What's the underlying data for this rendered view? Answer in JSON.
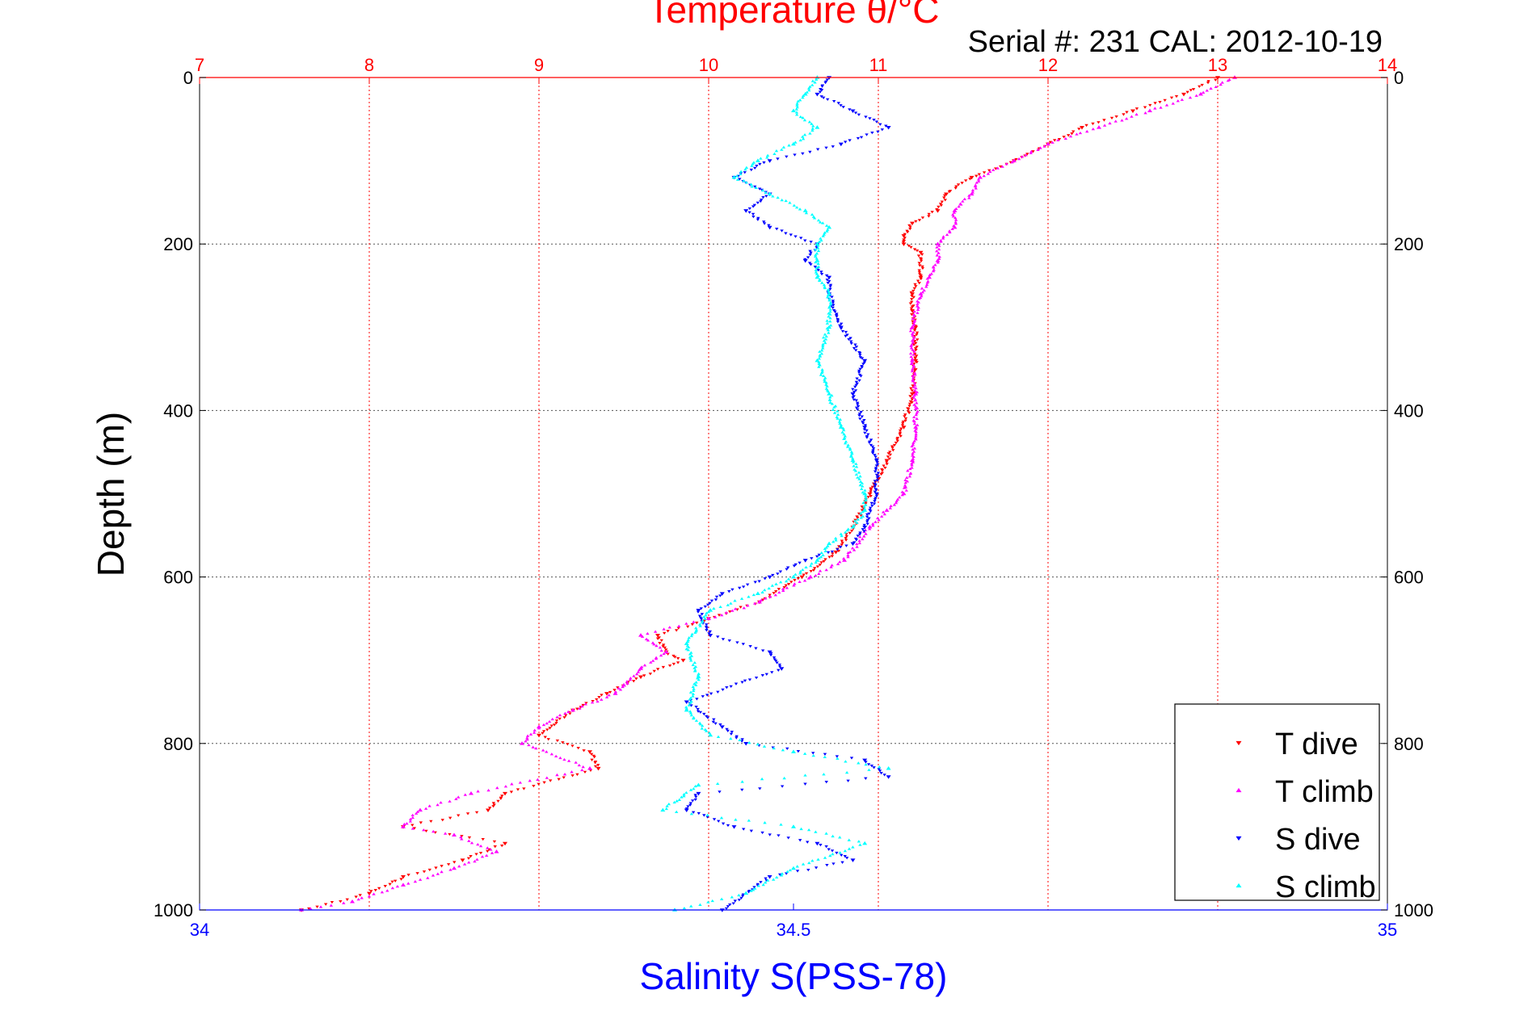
{
  "chart_data": {
    "type": "scatter",
    "title_top": "Temperature θ/°C",
    "subtitle": "Serial #: 231  CAL: 2012-10-19",
    "ylabel": "Depth (m)",
    "xlabel_bottom": "Salinity S(PSS-78)",
    "y_axis": {
      "range": [
        0,
        1000
      ],
      "reversed": true,
      "ticks": [
        0,
        200,
        400,
        600,
        800,
        1000
      ],
      "grid": true
    },
    "x_axis_top": {
      "quantity": "Temperature",
      "range": [
        7,
        14
      ],
      "ticks": [
        7,
        8,
        9,
        10,
        11,
        12,
        13,
        14
      ],
      "grid": true
    },
    "x_axis_bottom": {
      "quantity": "Salinity",
      "range": [
        34,
        35
      ],
      "ticks": [
        "34",
        "34.5",
        "35"
      ],
      "tick_values": [
        34,
        34.5,
        35
      ]
    },
    "legend": {
      "placement": "bottom-right",
      "entries": [
        "T dive",
        "T climb",
        "S dive",
        "S climb"
      ]
    },
    "colors": {
      "T dive": "#ff0000",
      "T climb": "#ff00ff",
      "S dive": "#0000ff",
      "S climb": "#00ffff",
      "top_axis": "#ff0000",
      "bottom_axis": "#0000ff",
      "grid": "#555555"
    },
    "series": [
      {
        "name": "T dive",
        "axis": "top",
        "marker": "triangle-down",
        "x": [
          13.0,
          12.8,
          12.5,
          12.2,
          12.0,
          11.8,
          11.55,
          11.4,
          11.35,
          11.2,
          11.15,
          11.15,
          11.25,
          11.25,
          11.2,
          11.2,
          11.22,
          11.22,
          11.2,
          11.15,
          11.05,
          10.95,
          10.85,
          10.75,
          10.55,
          10.3,
          10.0,
          9.7,
          9.75,
          9.85,
          9.6,
          9.4,
          9.2,
          9.0,
          9.3,
          9.35,
          8.8,
          8.7,
          8.2,
          8.8,
          8.55,
          8.2,
          8.0,
          7.6
        ],
        "y": [
          0,
          20,
          40,
          60,
          80,
          100,
          120,
          140,
          160,
          175,
          190,
          200,
          210,
          240,
          260,
          280,
          300,
          340,
          380,
          420,
          460,
          500,
          540,
          570,
          600,
          630,
          650,
          670,
          690,
          700,
          720,
          740,
          760,
          790,
          810,
          830,
          860,
          880,
          900,
          920,
          940,
          960,
          980,
          1000
        ]
      },
      {
        "name": "T climb",
        "axis": "top",
        "marker": "triangle-up",
        "x": [
          13.1,
          12.9,
          12.6,
          12.3,
          12.0,
          11.8,
          11.6,
          11.55,
          11.45,
          11.45,
          11.35,
          11.35,
          11.3,
          11.25,
          11.2,
          11.2,
          11.22,
          11.22,
          11.2,
          11.15,
          11.05,
          10.95,
          10.8,
          10.6,
          10.3,
          10.0,
          9.6,
          9.75,
          9.6,
          9.5,
          9.45,
          9.2,
          9.0,
          8.9,
          9.3,
          8.6,
          8.3,
          8.2,
          8.5,
          8.75,
          8.5,
          8.2,
          7.9,
          7.6
        ],
        "y": [
          0,
          20,
          40,
          60,
          80,
          100,
          120,
          140,
          160,
          180,
          200,
          220,
          240,
          260,
          300,
          340,
          380,
          420,
          460,
          500,
          520,
          540,
          580,
          600,
          630,
          650,
          670,
          690,
          710,
          730,
          740,
          760,
          780,
          800,
          830,
          860,
          880,
          900,
          910,
          930,
          950,
          970,
          990,
          1000
        ]
      },
      {
        "name": "S dive",
        "axis": "bottom",
        "marker": "triangle-down",
        "x": [
          34.53,
          34.52,
          34.55,
          34.58,
          34.54,
          34.48,
          34.45,
          34.48,
          34.46,
          34.48,
          34.52,
          34.51,
          34.53,
          34.53,
          34.54,
          34.56,
          34.55,
          34.56,
          34.57,
          34.57,
          34.56,
          34.55,
          34.51,
          34.48,
          34.44,
          34.42,
          34.43,
          34.48,
          34.49,
          34.41,
          34.44,
          34.46,
          34.56,
          34.58,
          34.42,
          34.41,
          34.45,
          34.52,
          34.55,
          34.48,
          34.44
        ],
        "y": [
          0,
          20,
          40,
          60,
          80,
          100,
          120,
          140,
          160,
          180,
          200,
          220,
          240,
          260,
          300,
          340,
          380,
          420,
          460,
          500,
          540,
          560,
          580,
          600,
          620,
          640,
          670,
          690,
          710,
          750,
          780,
          800,
          820,
          840,
          860,
          880,
          900,
          920,
          940,
          960,
          1000
        ]
      },
      {
        "name": "S climb",
        "axis": "bottom",
        "marker": "triangle-up",
        "x": [
          34.52,
          34.51,
          34.5,
          34.52,
          34.5,
          34.47,
          34.45,
          34.48,
          34.51,
          34.53,
          34.52,
          34.52,
          34.52,
          34.53,
          34.53,
          34.52,
          34.53,
          34.54,
          34.55,
          34.56,
          34.56,
          34.55,
          34.53,
          34.52,
          34.5,
          34.47,
          34.43,
          34.41,
          34.42,
          34.41,
          34.43,
          34.5,
          34.58,
          34.42,
          34.39,
          34.5,
          34.56,
          34.5,
          34.46,
          34.4
        ],
        "y": [
          0,
          20,
          40,
          60,
          80,
          100,
          120,
          140,
          160,
          180,
          200,
          220,
          240,
          260,
          300,
          340,
          380,
          420,
          460,
          500,
          520,
          540,
          560,
          580,
          600,
          620,
          640,
          680,
          720,
          760,
          790,
          810,
          830,
          850,
          880,
          900,
          920,
          950,
          980,
          1000
        ]
      }
    ]
  }
}
